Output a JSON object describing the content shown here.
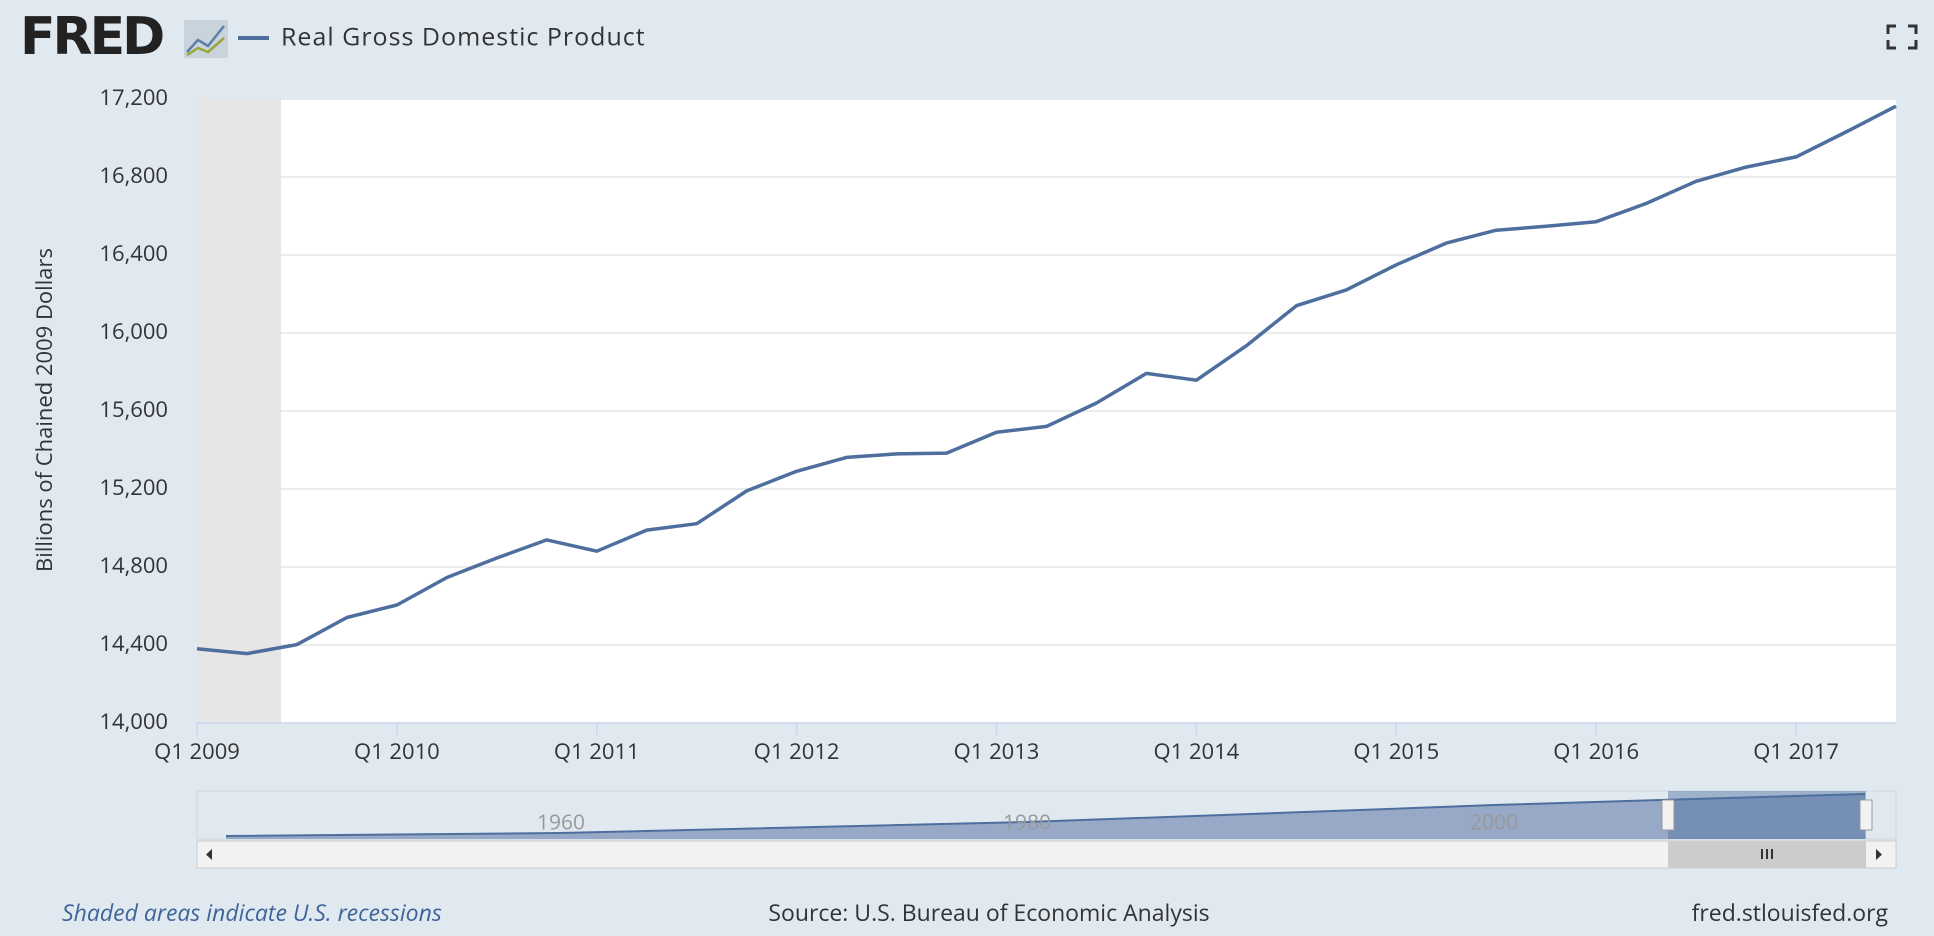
{
  "logo": "FRED",
  "chart_data": {
    "type": "line",
    "y_label": "Billions of Chained 2009 Dollars",
    "categories": [
      "Q1 2009",
      null,
      null,
      null,
      "Q1 2010",
      null,
      null,
      null,
      "Q1 2011",
      null,
      null,
      null,
      "Q1 2012",
      null,
      null,
      null,
      "Q1 2013",
      null,
      null,
      null,
      "Q1 2014",
      null,
      null,
      null,
      "Q1 2015",
      null,
      null,
      null,
      "Q1 2016",
      null,
      null,
      null,
      "Q1 2017",
      null,
      null
    ],
    "series": [
      {
        "name": "Real Gross Domestic Product",
        "color": "#4e6f9e",
        "values": [
          14381,
          14356,
          14402,
          14541,
          14605,
          14746,
          14846,
          14939,
          14881,
          14989,
          15022,
          15190,
          15291,
          15362,
          15380,
          15384,
          15491,
          15521,
          15641,
          15793,
          15758,
          15935,
          16140,
          16221,
          16350,
          16461,
          16527,
          16547,
          16571,
          16664,
          16778,
          16851,
          16903,
          17031,
          17163
        ]
      }
    ],
    "ylim": [
      14000,
      17200
    ],
    "yticks": [
      {
        "value": 14000,
        "label": "14,000"
      },
      {
        "value": 14400,
        "label": "14,400"
      },
      {
        "value": 14800,
        "label": "14,800"
      },
      {
        "value": 15200,
        "label": "15,200"
      },
      {
        "value": 15600,
        "label": "15,600"
      },
      {
        "value": 16000,
        "label": "16,000"
      },
      {
        "value": 16400,
        "label": "16,400"
      },
      {
        "value": 16800,
        "label": "16,800"
      },
      {
        "value": 17200,
        "label": "17,200"
      }
    ],
    "grid": true
  },
  "navigator": {
    "labels": [
      "1960",
      "1980",
      "2000"
    ]
  },
  "footer": {
    "note": "Shaded areas indicate U.S. recessions",
    "source": "Source: U.S. Bureau of Economic Analysis",
    "site": "fred.stlouisfed.org"
  }
}
